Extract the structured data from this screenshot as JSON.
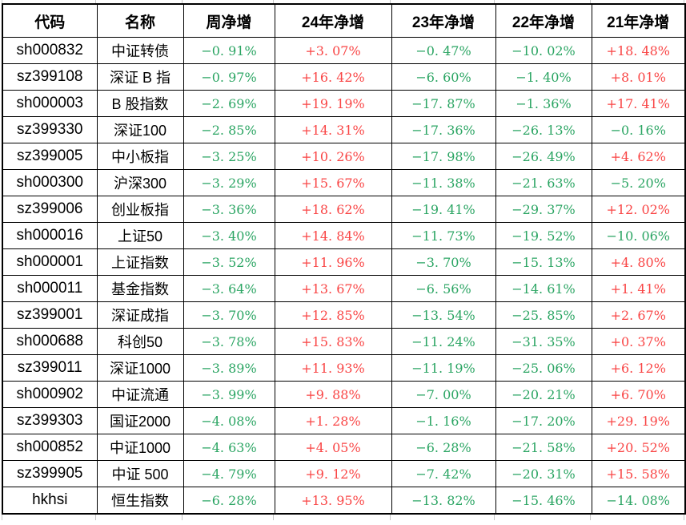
{
  "colors": {
    "positive_value": "#f94545",
    "negative_value": "#2ba563",
    "grid_border": "#000000",
    "header_text": "#000000",
    "background": "#ffffff"
  },
  "chart_data": {
    "type": "table",
    "columns": [
      "代码",
      "名称",
      "周净增",
      "24年净增",
      "23年净增",
      "22年净增",
      "21年净增"
    ],
    "rows": [
      [
        "sh000832",
        "中证转债",
        "−0. 91%",
        "+3. 07%",
        "−0. 47%",
        "−10. 02%",
        "+18. 48%"
      ],
      [
        "sz399108",
        "深证 B 指",
        "−0. 97%",
        "+16. 42%",
        "−6. 60%",
        "−1. 40%",
        "+8. 01%"
      ],
      [
        "sh000003",
        "B 股指数",
        "−2. 69%",
        "+19. 19%",
        "−17. 87%",
        "−1. 36%",
        "+17. 41%"
      ],
      [
        "sz399330",
        "深证100",
        "−2. 85%",
        "+14. 31%",
        "−17. 36%",
        "−26. 13%",
        "−0. 16%"
      ],
      [
        "sz399005",
        "中小板指",
        "−3. 25%",
        "+10. 26%",
        "−17. 98%",
        "−26. 49%",
        "+4. 62%"
      ],
      [
        "sh000300",
        "沪深300",
        "−3. 29%",
        "+15. 67%",
        "−11. 38%",
        "−21. 63%",
        "−5. 20%"
      ],
      [
        "sz399006",
        "创业板指",
        "−3. 36%",
        "+18. 62%",
        "−19. 41%",
        "−29. 37%",
        "+12. 02%"
      ],
      [
        "sh000016",
        "上证50",
        "−3. 40%",
        "+14. 84%",
        "−11. 73%",
        "−19. 52%",
        "−10. 06%"
      ],
      [
        "sh000001",
        "上证指数",
        "−3. 52%",
        "+11. 96%",
        "−3. 70%",
        "−15. 13%",
        "+4. 80%"
      ],
      [
        "sh000011",
        "基金指数",
        "−3. 64%",
        "+13. 67%",
        "−6. 56%",
        "−14. 61%",
        "+1. 41%"
      ],
      [
        "sz399001",
        "深证成指",
        "−3. 70%",
        "+12. 85%",
        "−13. 54%",
        "−25. 85%",
        "+2. 67%"
      ],
      [
        "sh000688",
        "科创50",
        "−3. 78%",
        "+15. 83%",
        "−11. 24%",
        "−31. 35%",
        "+0. 37%"
      ],
      [
        "sz399011",
        "深证1000",
        "−3. 89%",
        "+11. 93%",
        "−11. 19%",
        "−25. 06%",
        "+6. 12%"
      ],
      [
        "sh000902",
        "中证流通",
        "−3. 99%",
        "+9. 88%",
        "−7. 00%",
        "−20. 21%",
        "+6. 70%"
      ],
      [
        "sz399303",
        "国证2000",
        "−4. 08%",
        "+1. 28%",
        "−1. 16%",
        "−17. 20%",
        "+29. 19%"
      ],
      [
        "sh000852",
        "中证1000",
        "−4. 63%",
        "+4. 05%",
        "−6. 28%",
        "−21. 58%",
        "+20. 52%"
      ],
      [
        "sz399905",
        "中证 500",
        "−4. 79%",
        "+9. 12%",
        "−7. 42%",
        "−20. 31%",
        "+15. 58%"
      ],
      [
        "hkhsi",
        "恒生指数",
        "−6. 28%",
        "+13. 95%",
        "−13. 82%",
        "−15. 46%",
        "−14. 08%"
      ]
    ]
  }
}
